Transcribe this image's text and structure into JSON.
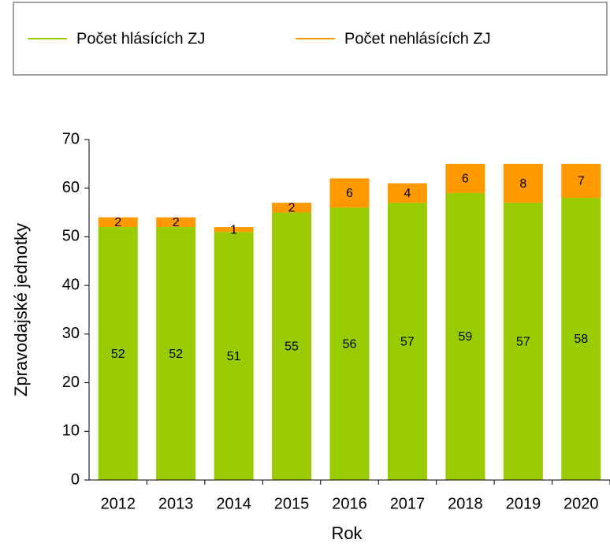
{
  "chart_data": {
    "type": "stacked_bar",
    "categories": [
      "2012",
      "2013",
      "2014",
      "2015",
      "2016",
      "2017",
      "2018",
      "2019",
      "2020"
    ],
    "series": [
      {
        "name": "Počet hlásících ZJ",
        "color": "#99cc00",
        "values": [
          52,
          52,
          51,
          55,
          56,
          57,
          59,
          57,
          58
        ]
      },
      {
        "name": "Počet nehlásících ZJ",
        "color": "#ff9900",
        "values": [
          2,
          2,
          1,
          2,
          6,
          4,
          6,
          8,
          7
        ]
      }
    ],
    "x_label": "Rok",
    "y_label": "Zpravodajské jednotky",
    "ylim": [
      0,
      70
    ],
    "yticks": [
      0,
      10,
      20,
      30,
      40,
      50,
      60,
      70
    ]
  }
}
